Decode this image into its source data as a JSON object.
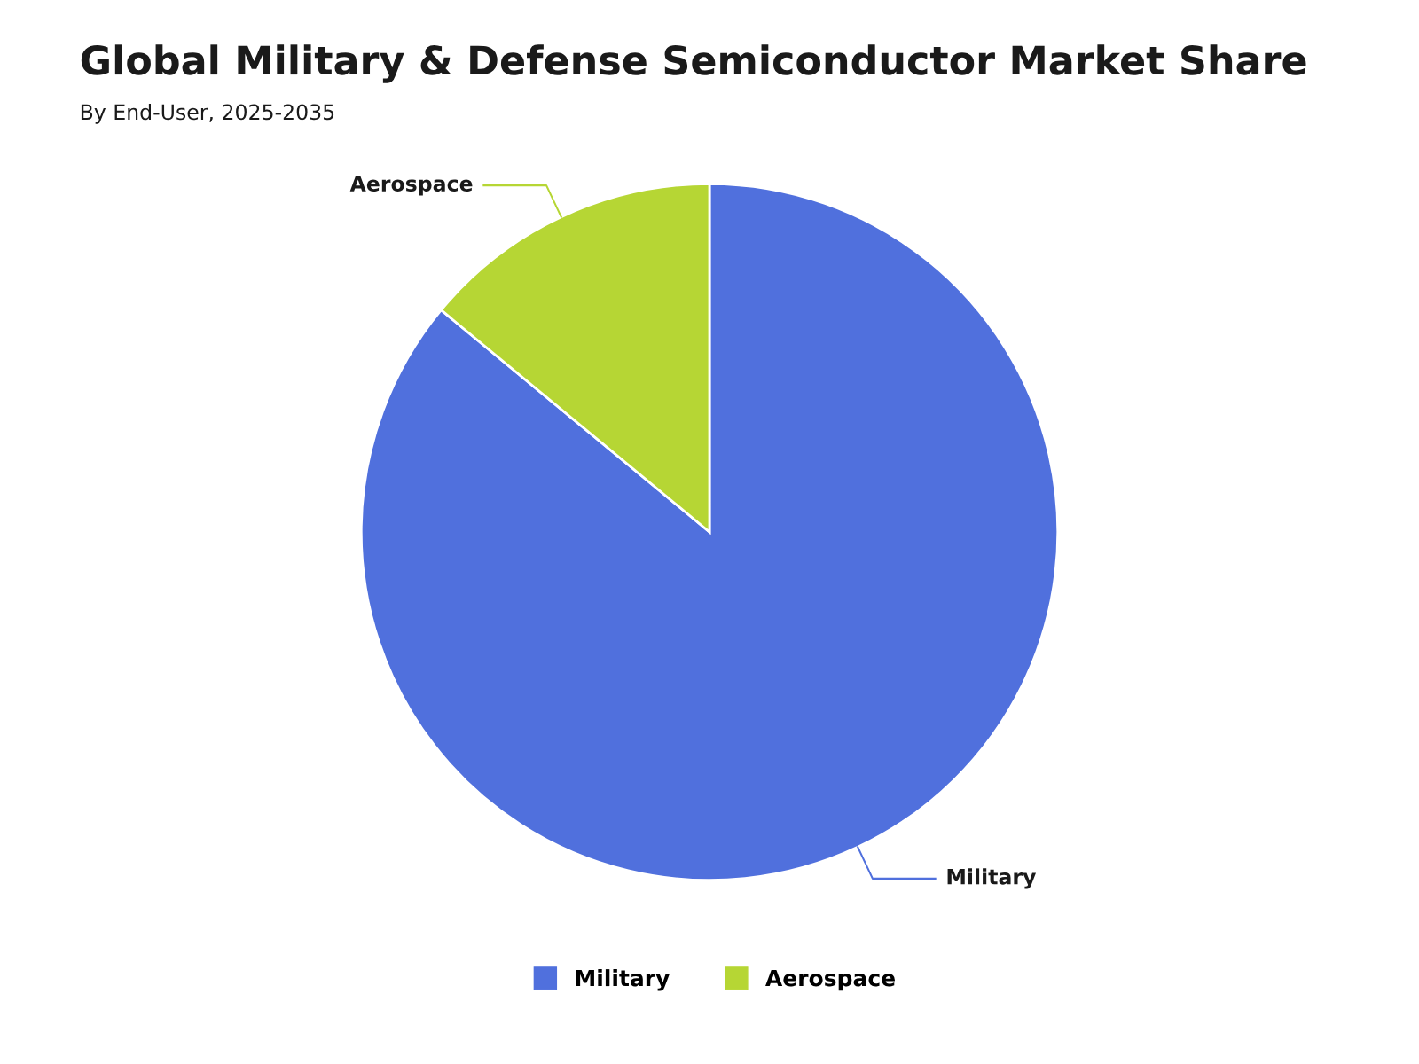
{
  "chart_data": {
    "type": "pie",
    "title": "Global Military & Defense Semiconductor Market Share",
    "subtitle": "By End-User, 2025-2035",
    "categories": [
      "Military",
      "Aerospace"
    ],
    "values": [
      86,
      14
    ],
    "colors": [
      "#5070dd",
      "#b6d634"
    ],
    "legend": "bottom"
  }
}
